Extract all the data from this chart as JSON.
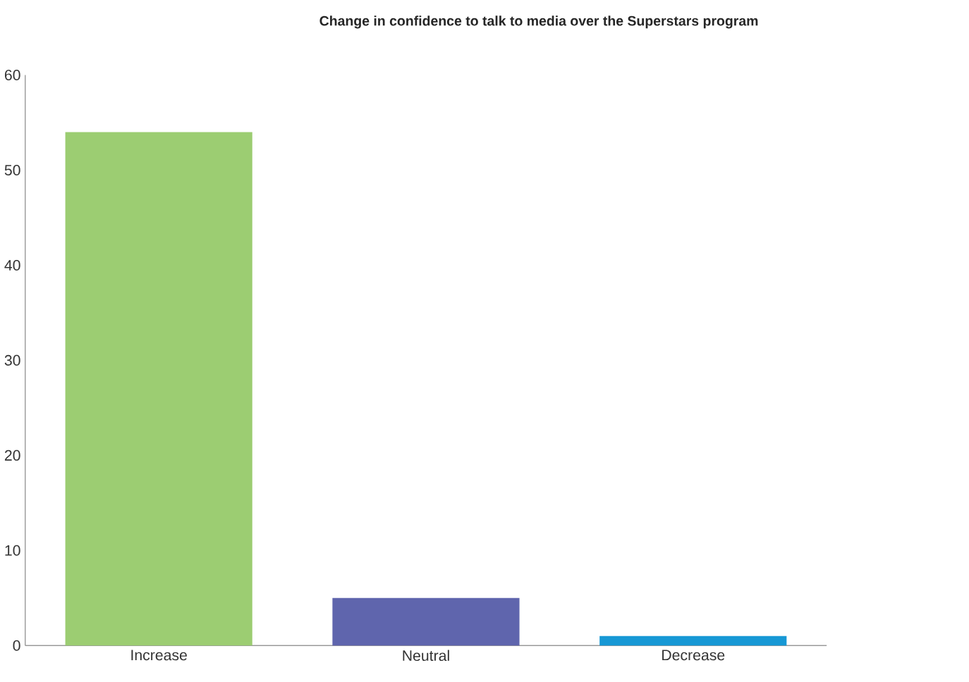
{
  "chart_data": {
    "type": "bar",
    "title": "Change in confidence to talk to media over the Superstars program",
    "categories": [
      "Increase",
      "Neutral",
      "Decrease"
    ],
    "values": [
      54,
      5,
      1
    ],
    "colors": [
      "#9ccd72",
      "#5f65ad",
      "#1798d5"
    ],
    "ylim": [
      0,
      60
    ],
    "yticks": [
      0,
      10,
      20,
      30,
      40,
      50,
      60
    ],
    "grid": false
  }
}
